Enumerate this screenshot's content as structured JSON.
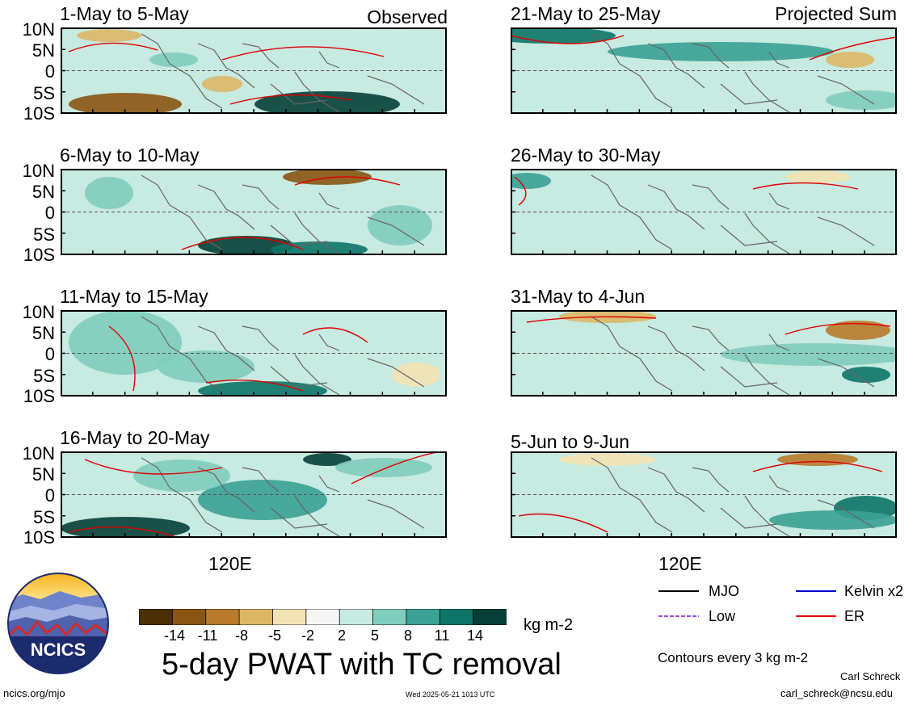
{
  "panels_left": [
    {
      "title": "1-May to 5-May",
      "tag": "Observed"
    },
    {
      "title": "6-May to 10-May",
      "tag": ""
    },
    {
      "title": "11-May to 15-May",
      "tag": ""
    },
    {
      "title": "16-May to 20-May",
      "tag": ""
    }
  ],
  "panels_right": [
    {
      "title": "21-May to 25-May",
      "tag": "Projected Sum"
    },
    {
      "title": "26-May to 30-May",
      "tag": ""
    },
    {
      "title": "31-May to 4-Jun",
      "tag": ""
    },
    {
      "title": "5-Jun to 9-Jun",
      "tag": ""
    }
  ],
  "lat_labels": [
    "10N",
    "5N",
    "0",
    "5S",
    "10S"
  ],
  "lon_label": "120E",
  "colorbar": {
    "labels": [
      "-14",
      "-11",
      "-8",
      "-5",
      "-2",
      "2",
      "5",
      "8",
      "11",
      "14"
    ],
    "colors": [
      "#4a2f07",
      "#8a5512",
      "#b87a2b",
      "#dcb766",
      "#f2e3b4",
      "#f6f6f6",
      "#c7eae1",
      "#80cdbd",
      "#3aa194",
      "#0d7468",
      "#053f36"
    ],
    "units": "kg m-2"
  },
  "main_title": "5-day PWAT with TC removal",
  "legend": {
    "items": [
      {
        "label": "MJO",
        "color": "#000000",
        "style": "solid"
      },
      {
        "label": "Kelvin x2",
        "color": "#0000cc",
        "style": "solid"
      },
      {
        "label": "Low",
        "color": "#9b4fd4",
        "style": "dashed"
      },
      {
        "label": "ER",
        "color": "#e00000",
        "style": "solid"
      }
    ],
    "note": "Contours every 3 kg m-2"
  },
  "logo_text": "NCICS",
  "website": "ncics.org/mjo",
  "timestamp": "Wed 2025-05-21 1013 UTC",
  "author": "Carl Schreck",
  "email": "carl_schreck@ncsu.edu"
}
